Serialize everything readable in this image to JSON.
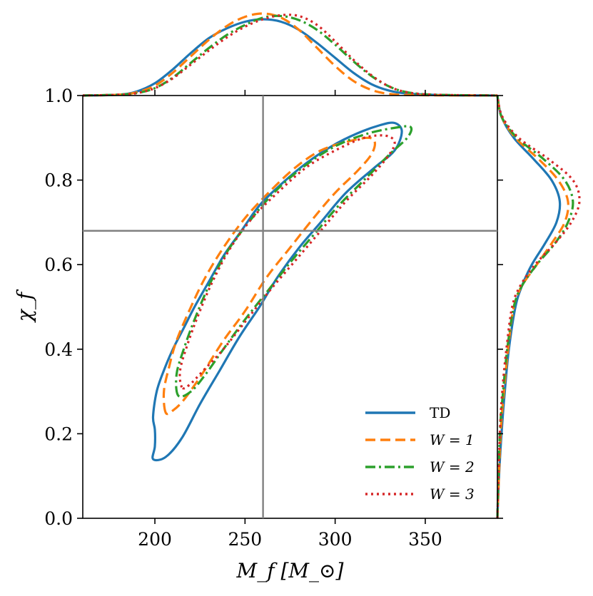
{
  "chart_data": {
    "type": "line",
    "subtype": "corner-plot: 90% credible contours with marginal KDEs",
    "xlabel": "M_f [M_⊙]",
    "ylabel": "χ_f",
    "xlim": [
      160,
      390
    ],
    "ylim": [
      0.0,
      1.0
    ],
    "xticks": [
      "200",
      "250",
      "300",
      "350"
    ],
    "xtick_values": [
      200,
      250,
      300,
      350
    ],
    "yticks": [
      "0.0",
      "0.2",
      "0.4",
      "0.6",
      "0.8",
      "1.0"
    ],
    "ytick_values": [
      0.0,
      0.2,
      0.4,
      0.6,
      0.8,
      1.0
    ],
    "truth": {
      "x": 260,
      "y": 0.68,
      "color": "#808080"
    },
    "legend_position": "lower-right",
    "series": [
      {
        "name": "TD",
        "legend_label": "TD",
        "color": "#1f77b4",
        "dash": "solid",
        "contour": [
          [
            199,
            0.14
          ],
          [
            200,
            0.17
          ],
          [
            200,
            0.21
          ],
          [
            199,
            0.24
          ],
          [
            201,
            0.3
          ],
          [
            205,
            0.35
          ],
          [
            210,
            0.4
          ],
          [
            216,
            0.45
          ],
          [
            222,
            0.5
          ],
          [
            230,
            0.56
          ],
          [
            238,
            0.62
          ],
          [
            248,
            0.68
          ],
          [
            258,
            0.74
          ],
          [
            270,
            0.79
          ],
          [
            284,
            0.84
          ],
          [
            298,
            0.88
          ],
          [
            312,
            0.91
          ],
          [
            325,
            0.93
          ],
          [
            333,
            0.935
          ],
          [
            337,
            0.915
          ],
          [
            333,
            0.87
          ],
          [
            322,
            0.83
          ],
          [
            306,
            0.77
          ],
          [
            292,
            0.7
          ],
          [
            280,
            0.64
          ],
          [
            268,
            0.57
          ],
          [
            258,
            0.5
          ],
          [
            247,
            0.43
          ],
          [
            236,
            0.35
          ],
          [
            225,
            0.27
          ],
          [
            215,
            0.19
          ],
          [
            206,
            0.145
          ],
          [
            199,
            0.14
          ]
        ],
        "x_marginal": [
          [
            160,
            0.0
          ],
          [
            180,
            0.01
          ],
          [
            190,
            0.05
          ],
          [
            200,
            0.15
          ],
          [
            210,
            0.32
          ],
          [
            220,
            0.52
          ],
          [
            230,
            0.7
          ],
          [
            240,
            0.82
          ],
          [
            250,
            0.9
          ],
          [
            260,
            0.93
          ],
          [
            270,
            0.9
          ],
          [
            280,
            0.8
          ],
          [
            290,
            0.64
          ],
          [
            300,
            0.46
          ],
          [
            310,
            0.28
          ],
          [
            320,
            0.14
          ],
          [
            330,
            0.06
          ],
          [
            340,
            0.025
          ],
          [
            360,
            0.005
          ],
          [
            390,
            0.0
          ]
        ],
        "y_marginal": [
          [
            0.0,
            0.0
          ],
          [
            0.1,
            0.02
          ],
          [
            0.2,
            0.05
          ],
          [
            0.3,
            0.09
          ],
          [
            0.4,
            0.14
          ],
          [
            0.5,
            0.22
          ],
          [
            0.55,
            0.3
          ],
          [
            0.6,
            0.42
          ],
          [
            0.65,
            0.58
          ],
          [
            0.7,
            0.72
          ],
          [
            0.75,
            0.76
          ],
          [
            0.8,
            0.66
          ],
          [
            0.85,
            0.44
          ],
          [
            0.9,
            0.2
          ],
          [
            0.95,
            0.05
          ],
          [
            1.0,
            0.0
          ]
        ]
      },
      {
        "name": "W = 1",
        "legend_label": "W = 1",
        "color": "#ff7f0e",
        "dash": "dashed",
        "contour": [
          [
            206,
            0.25
          ],
          [
            205,
            0.3
          ],
          [
            208,
            0.36
          ],
          [
            212,
            0.42
          ],
          [
            220,
            0.5
          ],
          [
            228,
            0.57
          ],
          [
            238,
            0.64
          ],
          [
            250,
            0.71
          ],
          [
            263,
            0.77
          ],
          [
            278,
            0.83
          ],
          [
            292,
            0.87
          ],
          [
            306,
            0.89
          ],
          [
            318,
            0.9
          ],
          [
            322,
            0.89
          ],
          [
            320,
            0.86
          ],
          [
            312,
            0.82
          ],
          [
            300,
            0.77
          ],
          [
            288,
            0.71
          ],
          [
            275,
            0.64
          ],
          [
            262,
            0.57
          ],
          [
            250,
            0.49
          ],
          [
            238,
            0.42
          ],
          [
            226,
            0.34
          ],
          [
            216,
            0.28
          ],
          [
            210,
            0.255
          ],
          [
            206,
            0.25
          ]
        ],
        "x_marginal": [
          [
            160,
            0.0
          ],
          [
            180,
            0.01
          ],
          [
            190,
            0.04
          ],
          [
            200,
            0.12
          ],
          [
            210,
            0.28
          ],
          [
            220,
            0.48
          ],
          [
            230,
            0.68
          ],
          [
            240,
            0.85
          ],
          [
            250,
            0.96
          ],
          [
            260,
            1.0
          ],
          [
            270,
            0.95
          ],
          [
            280,
            0.8
          ],
          [
            290,
            0.58
          ],
          [
            300,
            0.36
          ],
          [
            310,
            0.18
          ],
          [
            320,
            0.07
          ],
          [
            330,
            0.02
          ],
          [
            345,
            0.005
          ],
          [
            390,
            0.0
          ]
        ],
        "y_marginal": [
          [
            0.0,
            0.0
          ],
          [
            0.2,
            0.04
          ],
          [
            0.3,
            0.08
          ],
          [
            0.4,
            0.13
          ],
          [
            0.5,
            0.2
          ],
          [
            0.55,
            0.3
          ],
          [
            0.6,
            0.48
          ],
          [
            0.65,
            0.66
          ],
          [
            0.7,
            0.82
          ],
          [
            0.75,
            0.86
          ],
          [
            0.8,
            0.74
          ],
          [
            0.85,
            0.5
          ],
          [
            0.9,
            0.22
          ],
          [
            0.95,
            0.05
          ],
          [
            1.0,
            0.0
          ]
        ]
      },
      {
        "name": "W = 2",
        "legend_label": "W = 2",
        "color": "#2ca02c",
        "dash": "dashdot",
        "contour": [
          [
            213,
            0.29
          ],
          [
            212,
            0.34
          ],
          [
            216,
            0.4
          ],
          [
            222,
            0.47
          ],
          [
            230,
            0.55
          ],
          [
            240,
            0.63
          ],
          [
            252,
            0.7
          ],
          [
            266,
            0.77
          ],
          [
            282,
            0.83
          ],
          [
            300,
            0.88
          ],
          [
            318,
            0.91
          ],
          [
            335,
            0.925
          ],
          [
            342,
            0.925
          ],
          [
            340,
            0.9
          ],
          [
            330,
            0.86
          ],
          [
            316,
            0.8
          ],
          [
            302,
            0.74
          ],
          [
            290,
            0.68
          ],
          [
            276,
            0.61
          ],
          [
            263,
            0.54
          ],
          [
            250,
            0.47
          ],
          [
            238,
            0.4
          ],
          [
            228,
            0.34
          ],
          [
            220,
            0.3
          ],
          [
            213,
            0.29
          ]
        ],
        "x_marginal": [
          [
            160,
            0.0
          ],
          [
            180,
            0.01
          ],
          [
            190,
            0.03
          ],
          [
            200,
            0.09
          ],
          [
            210,
            0.22
          ],
          [
            220,
            0.4
          ],
          [
            230,
            0.58
          ],
          [
            240,
            0.74
          ],
          [
            250,
            0.86
          ],
          [
            260,
            0.95
          ],
          [
            270,
            0.97
          ],
          [
            280,
            0.92
          ],
          [
            290,
            0.8
          ],
          [
            300,
            0.62
          ],
          [
            310,
            0.42
          ],
          [
            320,
            0.24
          ],
          [
            330,
            0.11
          ],
          [
            340,
            0.04
          ],
          [
            355,
            0.01
          ],
          [
            390,
            0.0
          ]
        ],
        "y_marginal": [
          [
            0.0,
            0.0
          ],
          [
            0.2,
            0.03
          ],
          [
            0.3,
            0.07
          ],
          [
            0.4,
            0.12
          ],
          [
            0.5,
            0.2
          ],
          [
            0.55,
            0.3
          ],
          [
            0.6,
            0.48
          ],
          [
            0.65,
            0.7
          ],
          [
            0.7,
            0.86
          ],
          [
            0.75,
            0.92
          ],
          [
            0.8,
            0.82
          ],
          [
            0.85,
            0.56
          ],
          [
            0.9,
            0.24
          ],
          [
            0.95,
            0.05
          ],
          [
            1.0,
            0.0
          ]
        ]
      },
      {
        "name": "W = 3",
        "legend_label": "W = 3",
        "color": "#d62728",
        "dash": "dotted",
        "contour": [
          [
            215,
            0.31
          ],
          [
            214,
            0.35
          ],
          [
            218,
            0.41
          ],
          [
            224,
            0.48
          ],
          [
            232,
            0.56
          ],
          [
            242,
            0.64
          ],
          [
            254,
            0.71
          ],
          [
            268,
            0.77
          ],
          [
            284,
            0.83
          ],
          [
            300,
            0.87
          ],
          [
            316,
            0.9
          ],
          [
            328,
            0.905
          ],
          [
            333,
            0.89
          ],
          [
            330,
            0.86
          ],
          [
            320,
            0.81
          ],
          [
            306,
            0.75
          ],
          [
            292,
            0.68
          ],
          [
            278,
            0.61
          ],
          [
            264,
            0.54
          ],
          [
            251,
            0.47
          ],
          [
            238,
            0.4
          ],
          [
            227,
            0.35
          ],
          [
            219,
            0.315
          ],
          [
            215,
            0.31
          ]
        ],
        "x_marginal": [
          [
            160,
            0.0
          ],
          [
            180,
            0.01
          ],
          [
            190,
            0.03
          ],
          [
            200,
            0.09
          ],
          [
            210,
            0.21
          ],
          [
            220,
            0.38
          ],
          [
            230,
            0.55
          ],
          [
            240,
            0.71
          ],
          [
            250,
            0.84
          ],
          [
            260,
            0.93
          ],
          [
            270,
            0.98
          ],
          [
            280,
            0.97
          ],
          [
            290,
            0.86
          ],
          [
            300,
            0.66
          ],
          [
            310,
            0.44
          ],
          [
            320,
            0.25
          ],
          [
            330,
            0.11
          ],
          [
            340,
            0.04
          ],
          [
            355,
            0.01
          ],
          [
            390,
            0.0
          ]
        ],
        "y_marginal": [
          [
            0.0,
            0.0
          ],
          [
            0.2,
            0.03
          ],
          [
            0.3,
            0.06
          ],
          [
            0.4,
            0.11
          ],
          [
            0.5,
            0.18
          ],
          [
            0.55,
            0.28
          ],
          [
            0.6,
            0.46
          ],
          [
            0.65,
            0.7
          ],
          [
            0.7,
            0.9
          ],
          [
            0.75,
            1.0
          ],
          [
            0.8,
            0.92
          ],
          [
            0.85,
            0.62
          ],
          [
            0.9,
            0.26
          ],
          [
            0.95,
            0.06
          ],
          [
            1.0,
            0.0
          ]
        ]
      }
    ]
  }
}
